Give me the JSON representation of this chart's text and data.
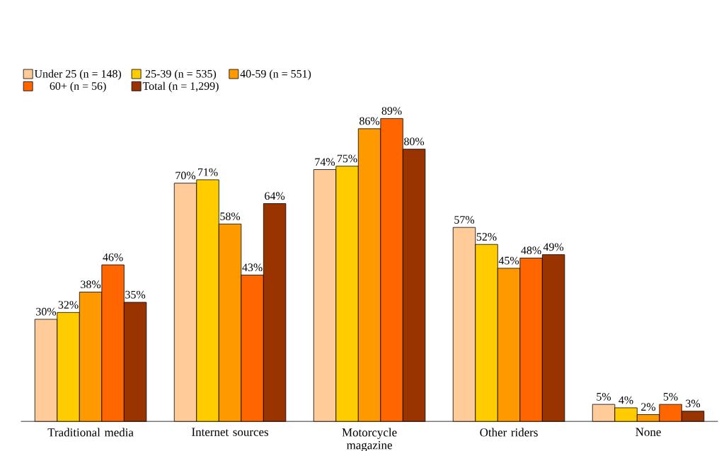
{
  "chart_data": {
    "type": "bar",
    "categories": [
      "Traditional media",
      "Internet sources",
      "Motorcycle magazine",
      "Other riders",
      "None"
    ],
    "series": [
      {
        "name": "Under 25 (n = 148)",
        "color": "#ffcc99",
        "values": [
          30,
          70,
          74,
          57,
          5
        ],
        "value_labels": [
          "30%",
          "70%",
          "74%",
          "57%",
          "5%"
        ]
      },
      {
        "name": "25-39 (n = 535)",
        "color": "#ffcc00",
        "values": [
          32,
          71,
          75,
          52,
          4
        ],
        "value_labels": [
          "32%",
          "71%",
          "75%",
          "52%",
          "4%"
        ]
      },
      {
        "name": "40-59 (n = 551)",
        "color": "#ff9900",
        "values": [
          38,
          58,
          86,
          45,
          2
        ],
        "value_labels": [
          "38%",
          "58%",
          "86%",
          "45%",
          "2%"
        ]
      },
      {
        "name": "60+ (n = 56)",
        "color": "#ff6600",
        "values": [
          46,
          43,
          89,
          48,
          5
        ],
        "value_labels": [
          "46%",
          "43%",
          "89%",
          "48%",
          "5%"
        ]
      },
      {
        "name": "Total (n = 1,299)",
        "color": "#993300",
        "values": [
          35,
          64,
          80,
          49,
          3
        ],
        "value_labels": [
          "35%",
          "64%",
          "80%",
          "49%",
          "3%"
        ]
      }
    ],
    "legend": "top"
  }
}
